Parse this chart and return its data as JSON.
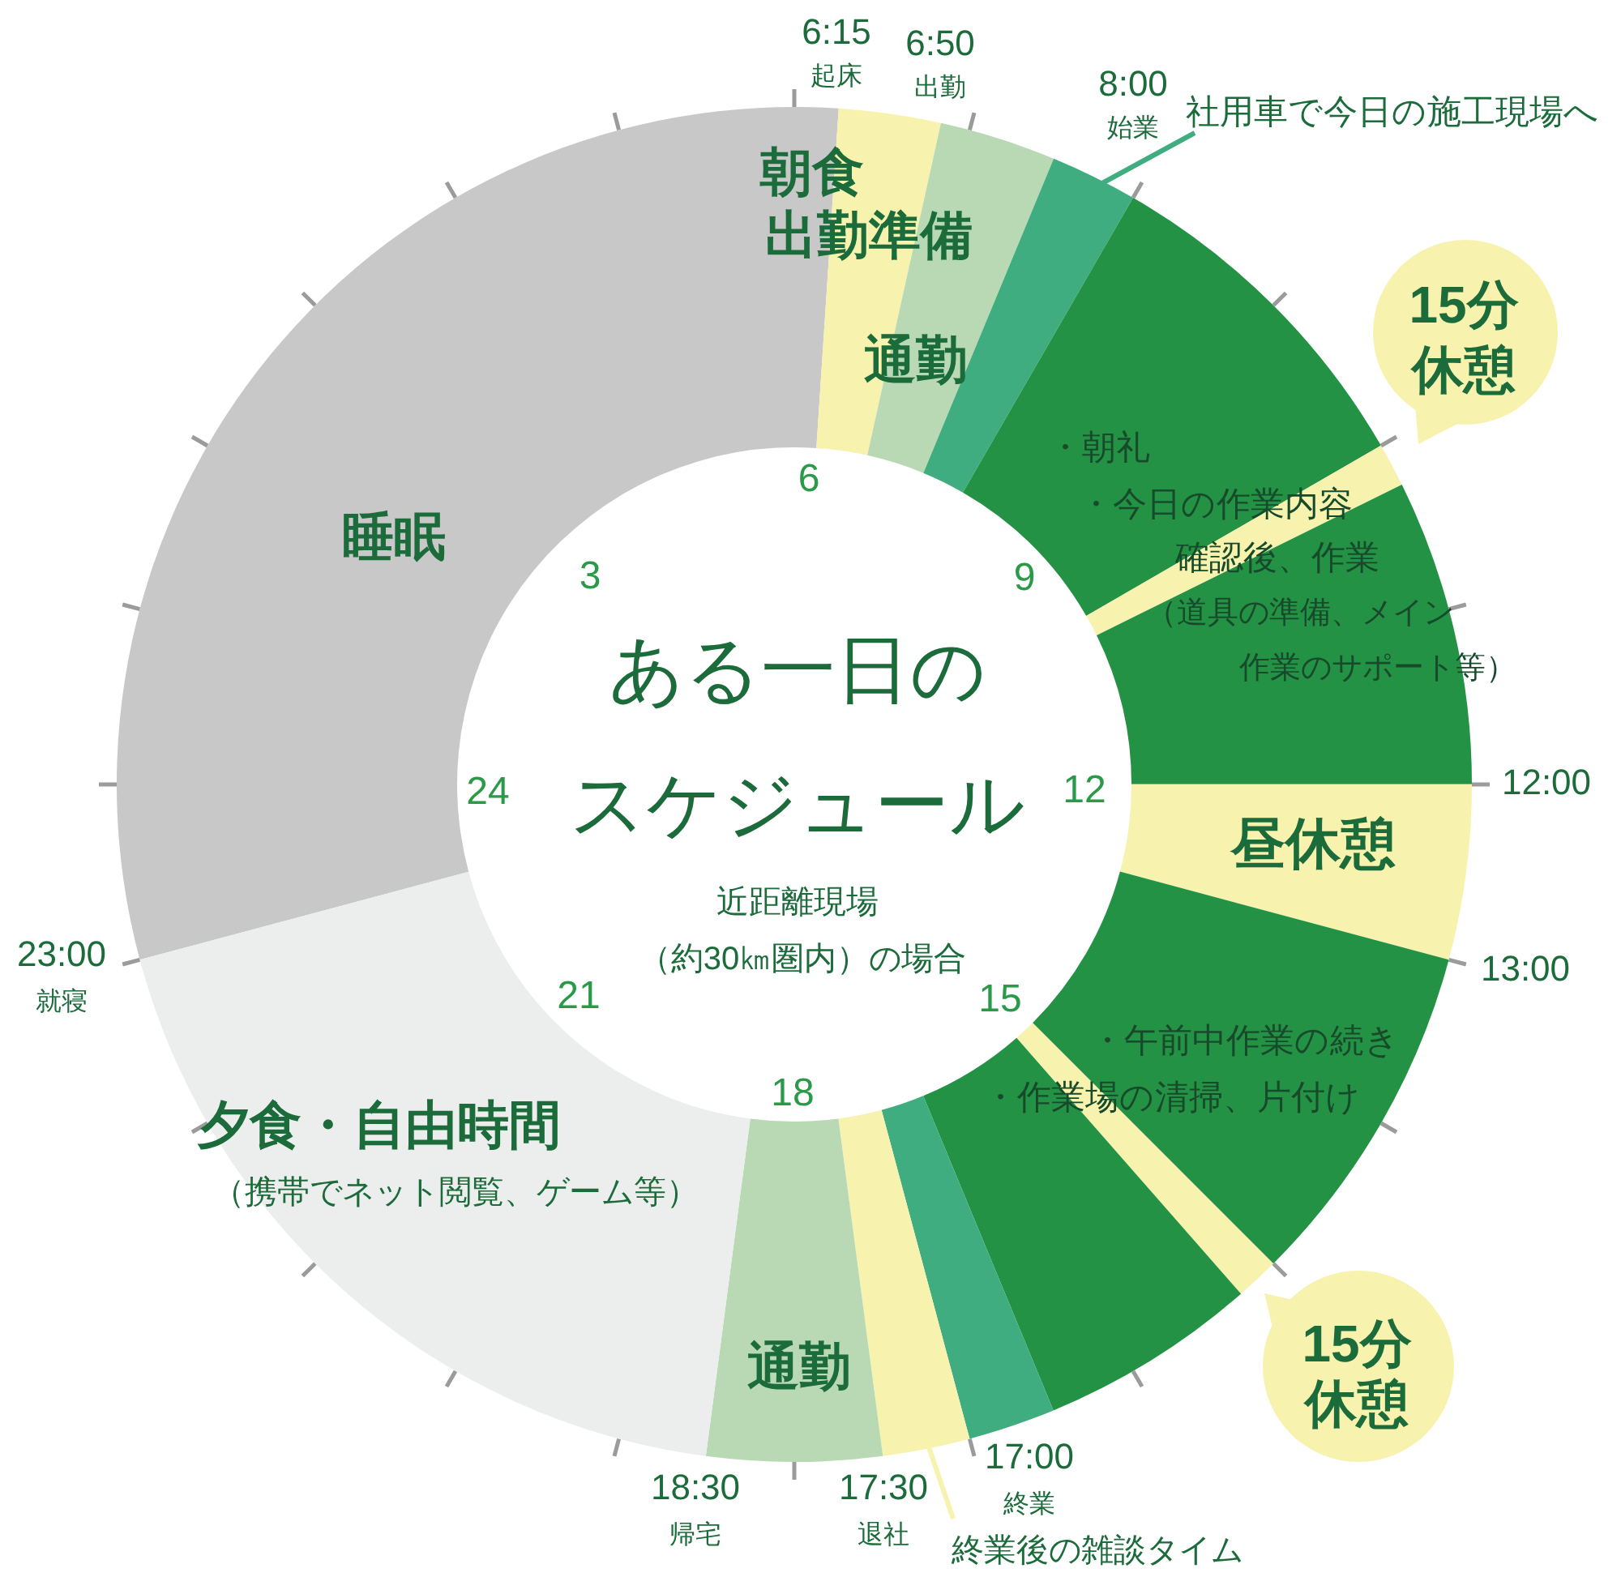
{
  "chart_data": {
    "type": "donut",
    "title": "ある一日のスケジュール",
    "subtitle": "近距離現場（約30㎞圏内）の場合",
    "categories": [
      "睡眠",
      null,
      "通勤",
      "社用車で今日の施工現場へ",
      null,
      null,
      "・朝礼・今日の作業内容確認後、作業（道具の準備、メイン作業のサポート等）",
      "昼休憩",
      "・午前中作業の続き・作業場の清掃、片付け",
      "15分休憩",
      null,
      null,
      "終業後の雑談タイム",
      "通勤",
      "夕食・自由時間"
    ],
    "values": [
      30.21,
      2.43,
      2.78,
      2.08,
      8.33,
      1.04,
      7.29,
      4.17,
      8.34,
      1.04,
      5.21,
      2.08,
      2.08,
      4.17,
      18.75
    ],
    "colors": [
      "#c8c8c8",
      "#f7f2ae",
      "#b8d9b3",
      "#40ad80",
      "#249244",
      "#f7f2ae",
      "#249244",
      "#f7f2ae",
      "#249244",
      "#f7f2ae",
      "#249244",
      "#40ad80",
      "#f7f2ae",
      "#b8d9b3",
      "#eceeed"
    ],
    "annotations": [
      "6:15",
      "起床",
      "6:50",
      "出勤",
      "8:00",
      "始業",
      "12:00",
      "13:00",
      "17:00",
      "終業",
      "17:30",
      "退社",
      "18:30",
      "帰宅",
      "23:00",
      "就寝",
      "3",
      "6",
      "9",
      "12",
      "15",
      "18",
      "21",
      "24",
      "（携帯でネット閲覧、ゲーム等）",
      "朝食出勤準備",
      "15分休憩"
    ]
  }
}
